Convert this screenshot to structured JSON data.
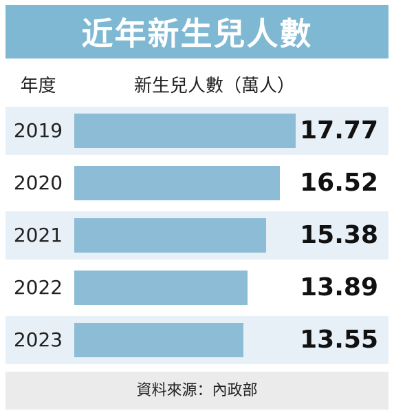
{
  "title": "近年新生兒人數",
  "headers": {
    "year": "年度",
    "value": "新生兒人數（萬人）"
  },
  "source": "資料來源：內政部",
  "colors": {
    "title_bg": "#7eb8d3",
    "bar": "#8dbdd6",
    "band": "#e8f0f7",
    "source_bg": "#ebebeb"
  },
  "chart_data": {
    "type": "bar",
    "orientation": "horizontal",
    "title": "近年新生兒人數",
    "xlabel": "新生兒人數（萬人）",
    "ylabel": "年度",
    "categories": [
      "2019",
      "2020",
      "2021",
      "2022",
      "2023"
    ],
    "values": [
      17.77,
      16.52,
      15.38,
      13.89,
      13.55
    ],
    "value_labels": [
      "17.77",
      "16.52",
      "15.38",
      "13.89",
      "13.55"
    ],
    "xlim": [
      0,
      17.77
    ],
    "grid": false
  }
}
